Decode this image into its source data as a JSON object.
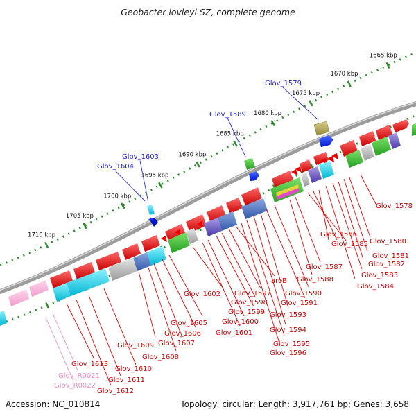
{
  "title": "Geobacter lovleyi SZ, complete genome",
  "footer": {
    "accession": "Accession: NC_010814",
    "info": "Topology: circular; Length: 3,917,761 bp; Genes: 3,658"
  },
  "colors": {
    "backbone": "#8c8c8c",
    "tick_dots": "#2e8b2e",
    "forward_label": "#1e1ed2",
    "reverse_label": "#d20000",
    "rna_label": "#f08cc8",
    "reverse_gene": "#f00000",
    "rna_gene": "#f7a8d6"
  },
  "scale": {
    "ticks": [
      "1665 kbp",
      "1670 kbp",
      "1675 kbp",
      "1680 kbp",
      "1685 kbp",
      "1690 kbp",
      "1695 kbp",
      "1700 kbp",
      "1705 kbp",
      "1710 kbp"
    ]
  },
  "forward_labels": [
    "Glov_1579",
    "Glov_1589",
    "Glov_1603",
    "Glov_1604"
  ],
  "reverse_labels": [
    "Glov_1578",
    "Glov_1580",
    "Glov_1581",
    "Glov_1582",
    "Glov_1583",
    "Glov_1584",
    "Glov_1585",
    "Glov_1586",
    "Glov_1587",
    "Glov_1588",
    "Glov_1590",
    "Glov_1591",
    "Glov_1593",
    "Glov_1594",
    "Glov_1595",
    "Glov_1596",
    "aroB",
    "Glov_1597",
    "Glov_1598",
    "Glov_1599",
    "Glov_1600",
    "Glov_1601",
    "Glov_1602",
    "Glov_1605",
    "Glov_1606",
    "Glov_1607",
    "Glov_1608",
    "Glov_1609",
    "Glov_1610",
    "Glov_1611",
    "Glov_1612",
    "Glov_1613"
  ],
  "rna_labels": [
    "Glov_R0021",
    "Glov_R0022"
  ]
}
